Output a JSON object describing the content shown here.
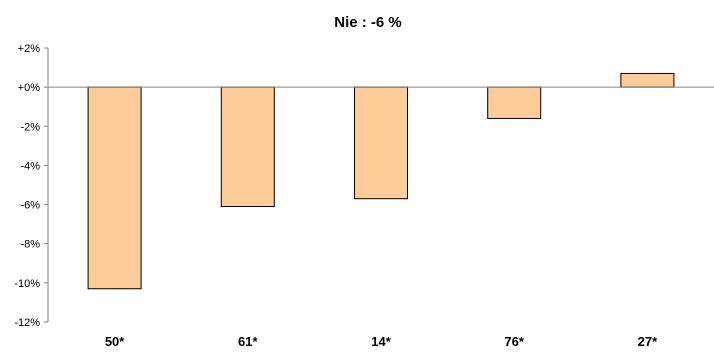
{
  "chart_data": {
    "type": "bar",
    "title": "Nie : -6 %",
    "categories": [
      "50*",
      "61*",
      "14*",
      "76*",
      "27*"
    ],
    "values": [
      -10.3,
      -6.1,
      -5.7,
      -1.6,
      0.7
    ],
    "ylim": [
      -12,
      2
    ],
    "yticks": [
      2,
      0,
      -2,
      -4,
      -6,
      -8,
      -10,
      -12
    ],
    "ytick_labels": [
      "+2%",
      "+0%",
      "-2%",
      "-4%",
      "-6%",
      "-8%",
      "-10%",
      "-12%"
    ],
    "xlabel": "",
    "ylabel": "",
    "grid": false,
    "legend": "none",
    "colors": {
      "bar_fill": "#FFCC99",
      "bar_stroke": "#000000",
      "axis": "#808080"
    }
  }
}
